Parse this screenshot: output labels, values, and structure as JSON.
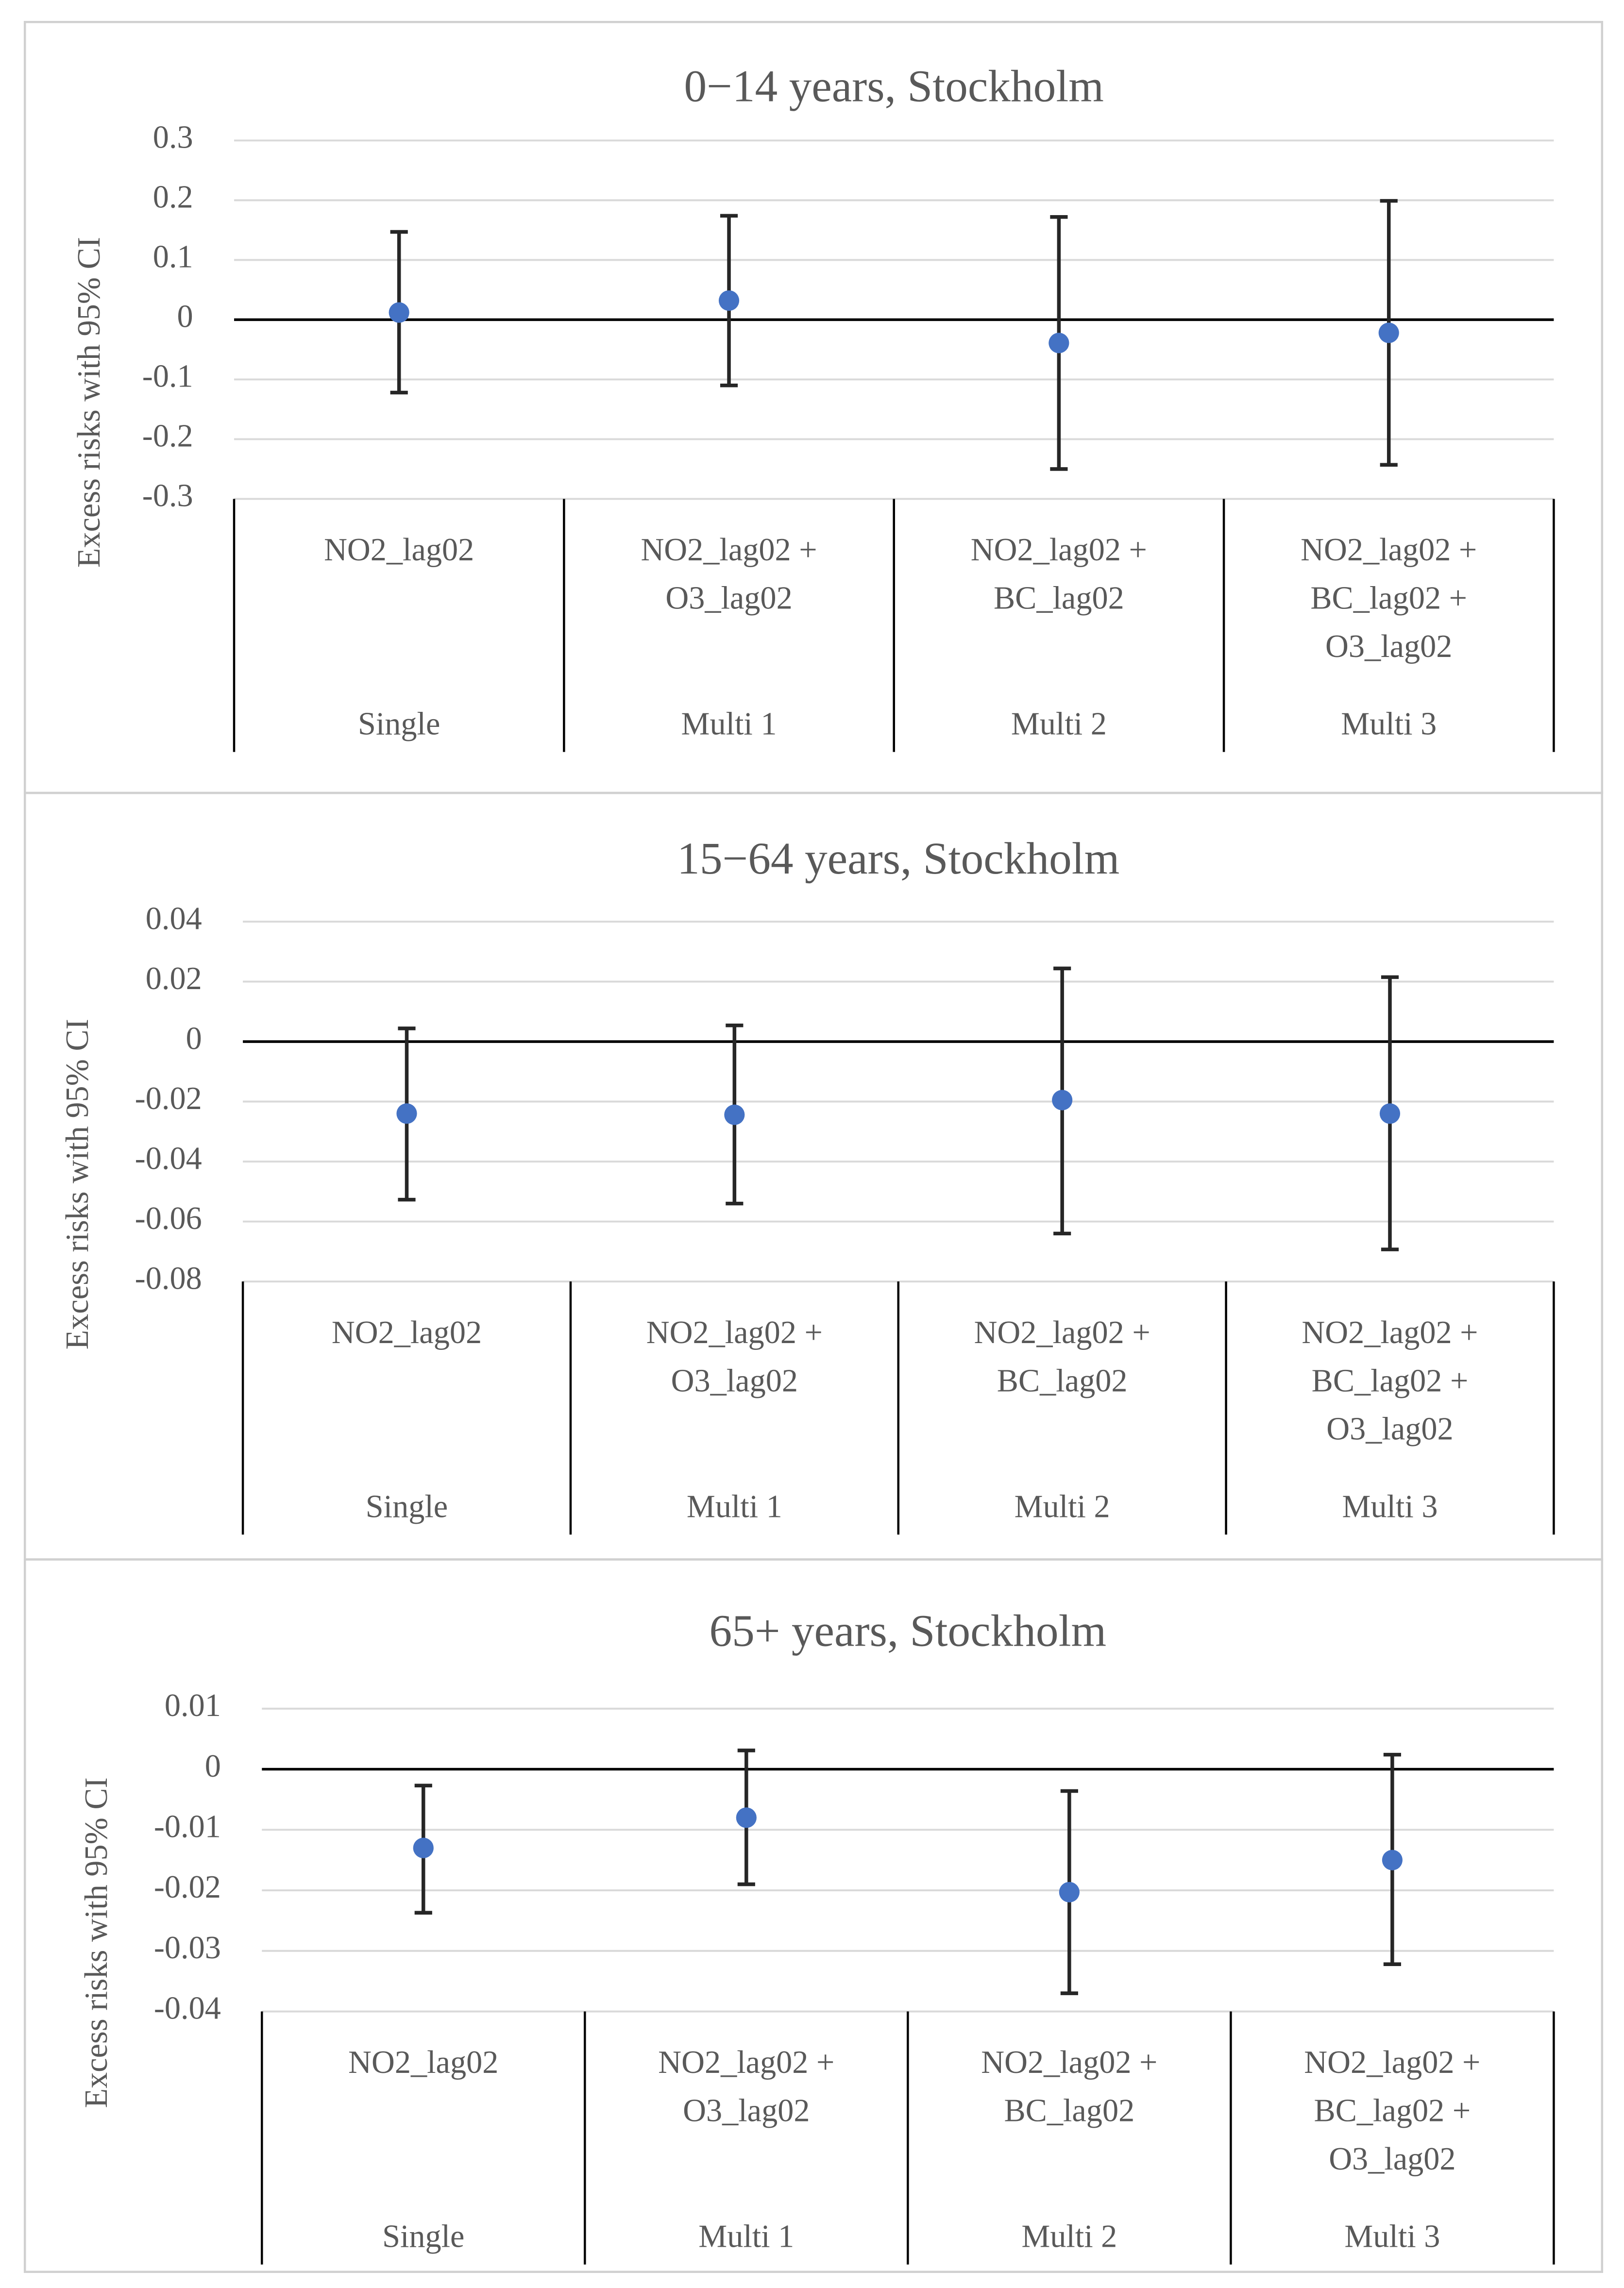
{
  "chart_data": [
    {
      "type": "errorbar",
      "title": "0−14 years, Stockholm",
      "y_label": "Excess risks with 95% CI",
      "categories": [
        [
          "NO2_lag02"
        ],
        [
          "NO2_lag02 +",
          "O3_lag02"
        ],
        [
          "NO2_lag02 +",
          "BC_lag02"
        ],
        [
          "NO2_lag02 +",
          "BC_lag02 +",
          "O3_lag02"
        ]
      ],
      "groups": [
        "Single",
        "Multi 1",
        "Multi 2",
        "Multi 3"
      ],
      "values": [
        0.012,
        0.032,
        -0.039,
        -0.022
      ],
      "lower": [
        -0.122,
        -0.11,
        -0.25,
        -0.243
      ],
      "upper": [
        0.147,
        0.174,
        0.172,
        0.199
      ],
      "color": "#4472c4",
      "ylim": [
        -0.3,
        0.3
      ],
      "yticks": [
        0.3,
        0.2,
        0.1,
        0,
        -0.1,
        -0.2,
        -0.3
      ],
      "grid": true
    },
    {
      "type": "errorbar",
      "title": "15−64 years, Stockholm",
      "y_label": "Excess risks with 95% CI",
      "categories": [
        [
          "NO2_lag02"
        ],
        [
          "NO2_lag02 +",
          "O3_lag02"
        ],
        [
          "NO2_lag02 +",
          "BC_lag02"
        ],
        [
          "NO2_lag02 +",
          "BC_lag02 +",
          "O3_lag02"
        ]
      ],
      "groups": [
        "Single",
        "Multi 1",
        "Multi 2",
        "Multi 3"
      ],
      "values": [
        -0.024,
        -0.0244,
        -0.0195,
        -0.024
      ],
      "lower": [
        -0.0527,
        -0.054,
        -0.064,
        -0.0693
      ],
      "upper": [
        0.0044,
        0.0054,
        0.0244,
        0.0215
      ],
      "color": "#4472c4",
      "ylim": [
        -0.08,
        0.04
      ],
      "yticks": [
        0.04,
        0.02,
        0,
        -0.02,
        -0.04,
        -0.06,
        -0.08
      ],
      "grid": true
    },
    {
      "type": "errorbar",
      "title": "65+ years, Stockholm",
      "y_label": "Excess risks with 95% CI",
      "categories": [
        [
          "NO2_lag02"
        ],
        [
          "NO2_lag02 +",
          "O3_lag02"
        ],
        [
          "NO2_lag02 +",
          "BC_lag02"
        ],
        [
          "NO2_lag02 +",
          "BC_lag02 +",
          "O3_lag02"
        ]
      ],
      "groups": [
        "Single",
        "Multi 1",
        "Multi 2",
        "Multi 3"
      ],
      "values": [
        -0.013,
        -0.008,
        -0.0203,
        -0.015
      ],
      "lower": [
        -0.0237,
        -0.019,
        -0.037,
        -0.0322
      ],
      "upper": [
        -0.0027,
        0.0031,
        -0.0036,
        0.0024
      ],
      "color": "#4472c4",
      "ylim": [
        -0.04,
        0.01
      ],
      "yticks": [
        0.01,
        0,
        -0.01,
        -0.02,
        -0.03,
        -0.04
      ],
      "grid": true
    }
  ]
}
